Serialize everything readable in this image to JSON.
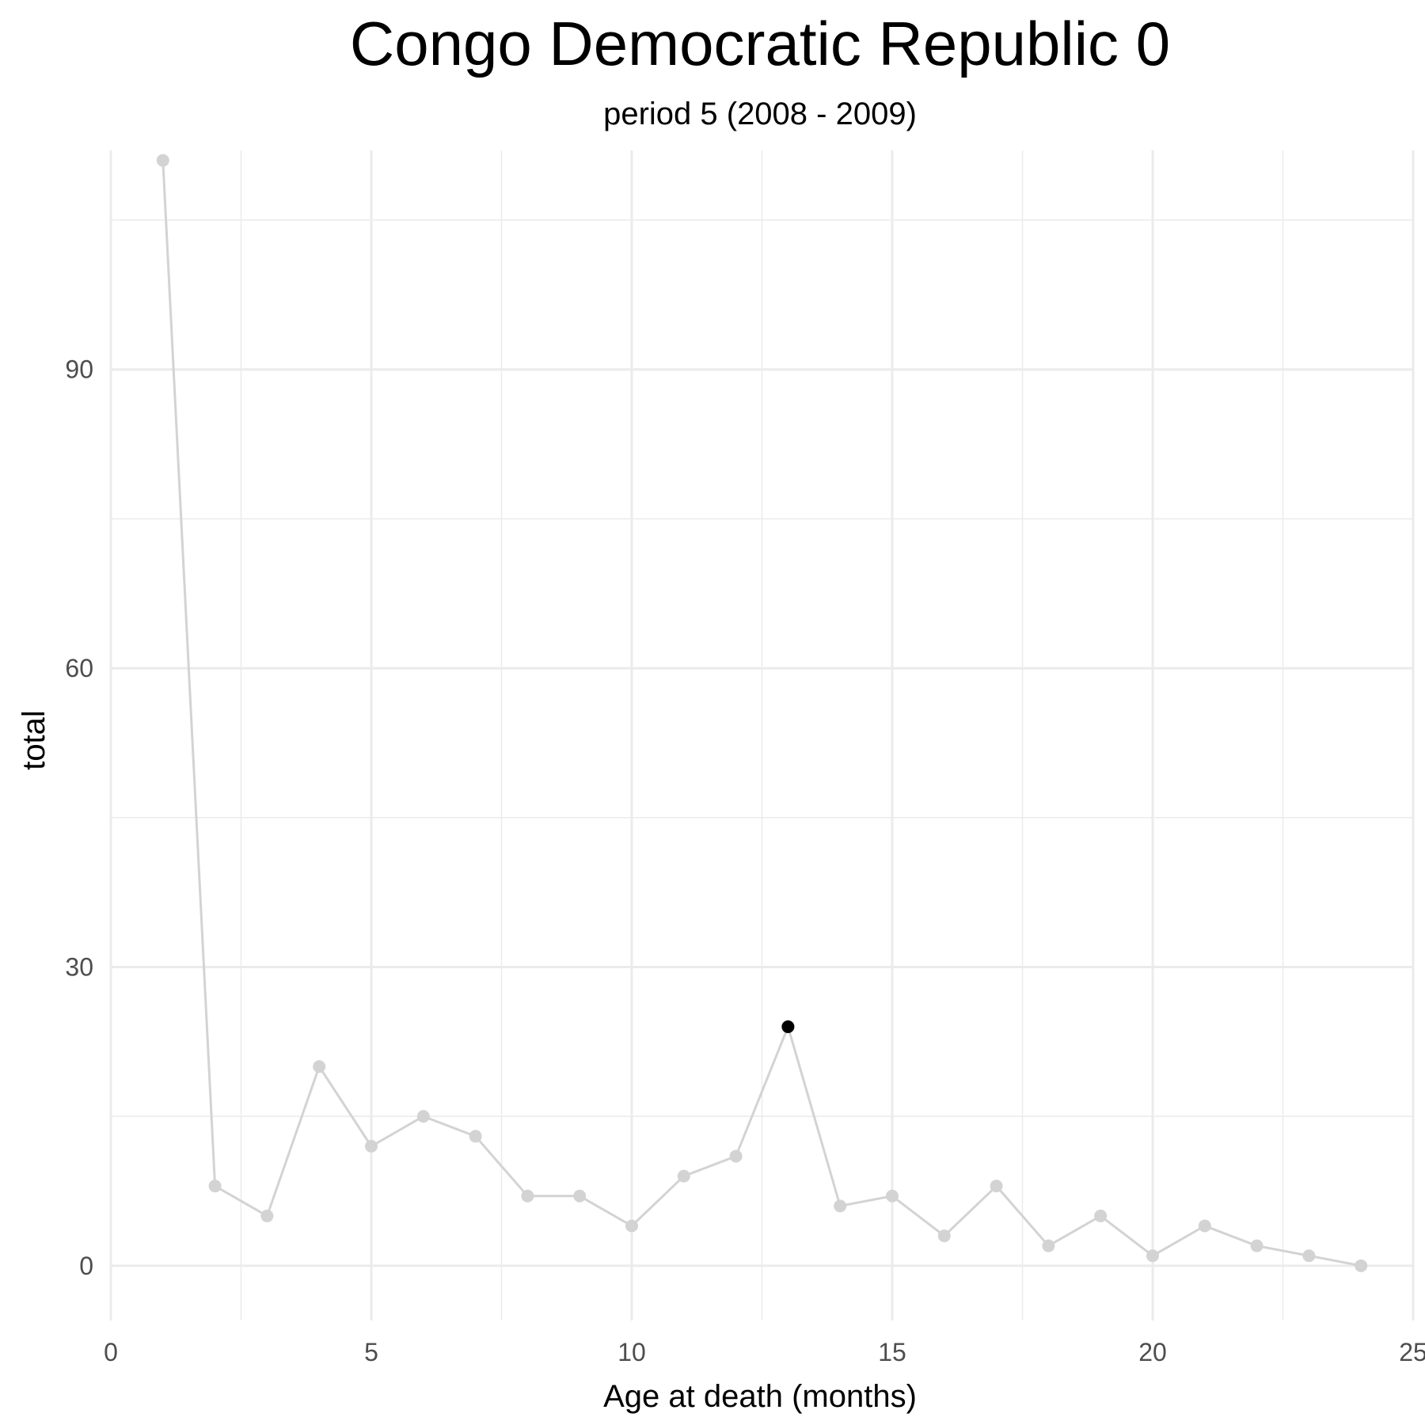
{
  "chart_data": {
    "type": "line",
    "title": "Congo Democratic Republic 0",
    "subtitle": "period 5 (2008 - 2009)",
    "xlabel": "Age at death (months)",
    "ylabel": "total",
    "xlim": [
      0,
      25
    ],
    "ylim": [
      -5.5,
      112
    ],
    "x_ticks": [
      0,
      5,
      10,
      15,
      20,
      25
    ],
    "y_ticks": [
      0,
      30,
      60,
      90
    ],
    "grid": true,
    "series": [
      {
        "x": [
          1,
          2,
          3,
          4,
          5,
          6,
          7,
          8,
          9,
          10,
          11,
          12,
          13,
          14,
          15,
          16,
          17,
          18,
          19,
          20,
          21,
          22,
          23,
          24
        ],
        "values": [
          111,
          8,
          5,
          20,
          12,
          15,
          13,
          7,
          7,
          4,
          9,
          11,
          24,
          6,
          7,
          3,
          8,
          2,
          5,
          1,
          4,
          2,
          1,
          0
        ],
        "color": "#d3d3d3"
      }
    ],
    "highlight": {
      "x": 13,
      "y": 24,
      "color": "#000000"
    }
  }
}
